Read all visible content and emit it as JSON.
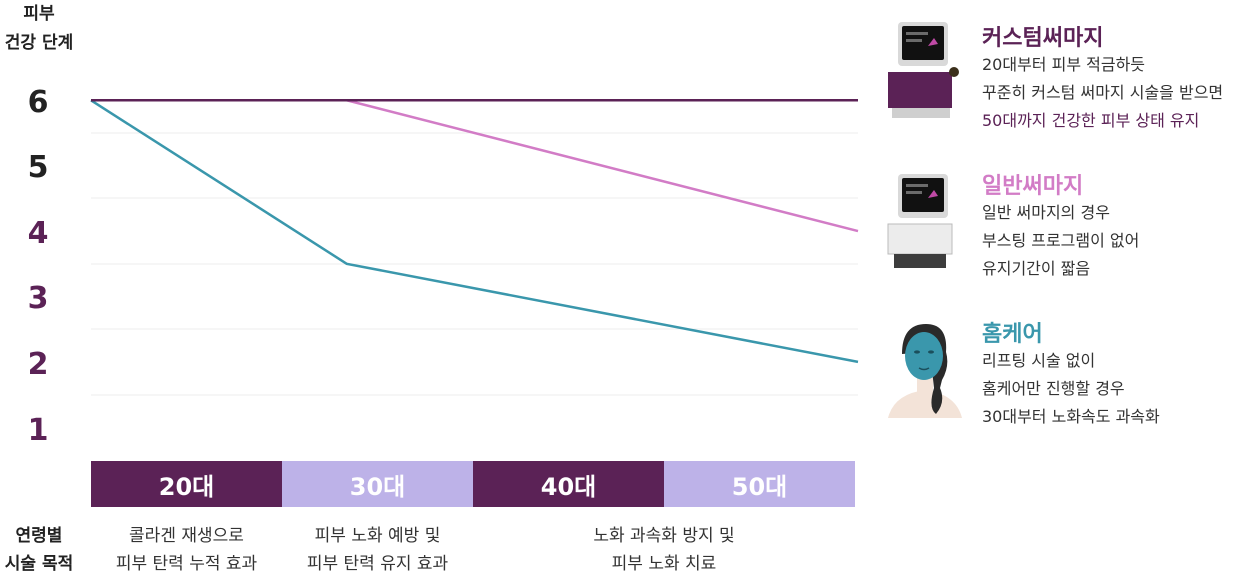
{
  "chart_data": {
    "type": "line",
    "ylabel_lines": [
      "피부",
      "건강 단계"
    ],
    "y_ticks": [
      "6",
      "5",
      "4",
      "3",
      "2",
      "1"
    ],
    "ylim": [
      1,
      6
    ],
    "x_categories": [
      "20대",
      "30대",
      "40대",
      "50대"
    ],
    "series": [
      {
        "name": "커스텀써마지",
        "color": "#5b2256",
        "points": [
          [
            20,
            6.5
          ],
          [
            50,
            6.5
          ]
        ]
      },
      {
        "name": "일반써마지",
        "color": "#d27cc6",
        "points": [
          [
            20,
            6.5
          ],
          [
            30,
            6.5
          ],
          [
            50,
            4.5
          ]
        ]
      },
      {
        "name": "홈케어",
        "color": "#3a97ac",
        "points": [
          [
            20,
            6.5
          ],
          [
            30,
            4.0
          ],
          [
            50,
            2.5
          ]
        ]
      }
    ],
    "grid": true
  },
  "ylabel": {
    "line1": "피부",
    "line2": "건강 단계"
  },
  "ticks": {
    "t6": "6",
    "t5": "5",
    "t4": "4",
    "t3": "3",
    "t2": "2",
    "t1": "1"
  },
  "tick_colors": {
    "dark": "#222222",
    "purple": "#5b2256"
  },
  "age_bars": {
    "a20": "20대",
    "a30": "30대",
    "a40": "40대",
    "a50": "50대"
  },
  "purpose": {
    "title_line1": "연령별",
    "title_line2": "시술 목적",
    "p1_line1": "콜라겐 재생으로",
    "p1_line2": "피부 탄력 누적 효과",
    "p2_line1": "피부 노화 예방 및",
    "p2_line2": "피부 탄력 유지 효과",
    "p3_line1": "노화 과속화 방지 및",
    "p3_line2": "피부 노화 치료"
  },
  "legend": {
    "custom": {
      "title": "커스텀써마지",
      "line1": "20대부터 피부 적금하듯",
      "line2": "꾸준히 커스텀 써마지 시술을 받으면",
      "line3": "50대까지 건강한 피부 상태 유지",
      "color": "#5b2256",
      "icon": "thermage-device-icon"
    },
    "normal": {
      "title": "일반써마지",
      "line1": "일반 써마지의 경우",
      "line2": "부스팅 프로그램이 없어",
      "line3": "유지기간이 짧음",
      "color": "#d27cc6",
      "icon": "thermage-device-icon"
    },
    "home": {
      "title": "홈케어",
      "line1": "리프팅 시술 없이",
      "line2": "홈케어만 진행할 경우",
      "line3": "30대부터 노화속도 과속화",
      "color": "#3a97ac",
      "icon": "face-mask-icon"
    }
  },
  "colors": {
    "dark_bar": "#5b2256",
    "light_bar": "#bdb2e8"
  }
}
